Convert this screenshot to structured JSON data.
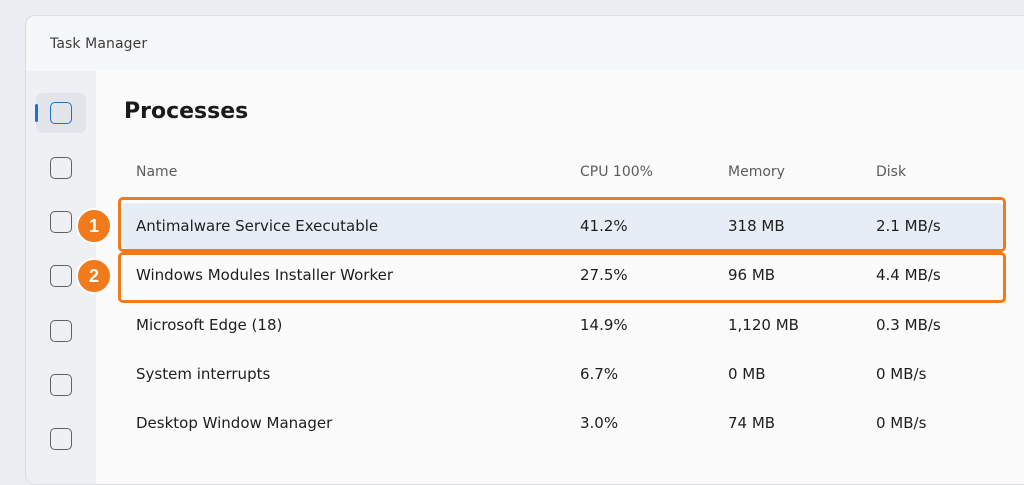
{
  "window": {
    "title": "Task Manager"
  },
  "sidebar": {
    "items": [
      {
        "icon": "tab-icon",
        "active": true
      },
      {
        "icon": "tab-icon",
        "active": false
      },
      {
        "icon": "tab-icon",
        "active": false
      },
      {
        "icon": "tab-icon",
        "active": false
      },
      {
        "icon": "tab-icon",
        "active": false
      },
      {
        "icon": "tab-icon",
        "active": false
      },
      {
        "icon": "tab-icon",
        "active": false
      }
    ]
  },
  "main": {
    "title": "Processes",
    "columns": {
      "name": "Name",
      "cpu": "CPU 100%",
      "memory": "Memory",
      "disk": "Disk"
    },
    "rows": [
      {
        "name": "Antimalware Service Executable",
        "cpu": "41.2%",
        "memory": "318 MB",
        "disk": "2.1 MB/s"
      },
      {
        "name": "Windows Modules Installer Worker",
        "cpu": "27.5%",
        "memory": "96 MB",
        "disk": "4.4 MB/s"
      },
      {
        "name": "Microsoft Edge (18)",
        "cpu": "14.9%",
        "memory": "1,120 MB",
        "disk": "0.3 MB/s"
      },
      {
        "name": "System interrupts",
        "cpu": "6.7%",
        "memory": "0 MB",
        "disk": "0 MB/s"
      },
      {
        "name": "Desktop Window Manager",
        "cpu": "3.0%",
        "memory": "74 MB",
        "disk": "0 MB/s"
      }
    ]
  },
  "annotations": [
    {
      "label": "1"
    },
    {
      "label": "2"
    }
  ],
  "colors": {
    "accent": "#1f6fd1",
    "annotation": "#f07a1c",
    "selected_row": "#e7edf7"
  }
}
